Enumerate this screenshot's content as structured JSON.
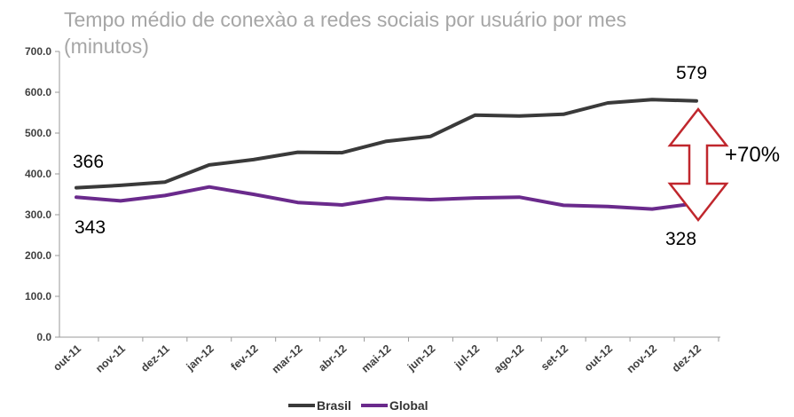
{
  "chart_data": {
    "type": "line",
    "title_lines": [
      "Tempo médio de conexào a redes sociais por usuário por mes",
      "(minutos)"
    ],
    "xlabel": "",
    "ylabel": "",
    "categories": [
      "out-11",
      "nov-11",
      "dez-11",
      "jan-12",
      "fev-12",
      "mar-12",
      "abr-12",
      "mai-12",
      "jun-12",
      "jul-12",
      "ago-12",
      "set-12",
      "out-12",
      "nov-12",
      "dez-12"
    ],
    "yticks": [
      "0.0",
      "100.0",
      "200.0",
      "300.0",
      "400.0",
      "500.0",
      "600.0",
      "700.0"
    ],
    "ylim": [
      0,
      700
    ],
    "grid": false,
    "legend_position": "bottom",
    "series": [
      {
        "name": "Brasil",
        "color": "#3a3a3a",
        "values": [
          366,
          372,
          380,
          422,
          435,
          453,
          452,
          480,
          492,
          544,
          542,
          546,
          574,
          582,
          579
        ]
      },
      {
        "name": "Global",
        "color": "#6a2a8c",
        "values": [
          343,
          334,
          347,
          368,
          350,
          330,
          324,
          341,
          337,
          341,
          343,
          323,
          320,
          314,
          328
        ]
      }
    ],
    "annotations": {
      "brasil_start": "366",
      "global_start": "343",
      "brasil_end": "579",
      "global_end": "328",
      "difference": "+70%"
    },
    "arrow_color": "#c0272d"
  }
}
